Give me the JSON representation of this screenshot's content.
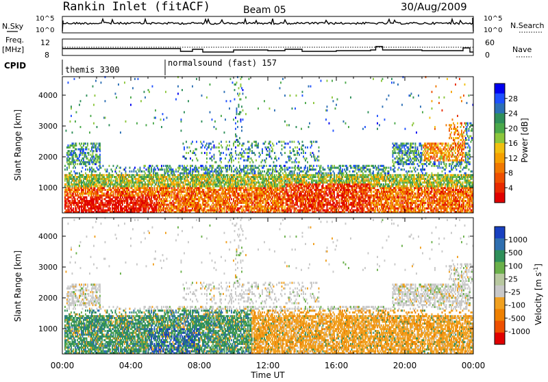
{
  "header": {
    "station": "Rankin Inlet (fitACF)",
    "beam": "Beam 05",
    "date": "30/Aug/2009"
  },
  "nsky_panel": {
    "label": "N.Sky",
    "right_label": "N.Search",
    "ticks": [
      "10^5",
      "10^0"
    ],
    "right_ticks": [
      "10^5",
      "10^0"
    ]
  },
  "freq_panel": {
    "label_line1": "Freq.",
    "label_line2": "[MHz]",
    "ticks": [
      "12",
      "8"
    ],
    "right_label": "Nave",
    "right_ticks": [
      "60",
      "0"
    ]
  },
  "cpid": {
    "label": "CPID",
    "programs": [
      {
        "name": "themis 3300",
        "start_hour": 0
      },
      {
        "name": "normalsound (fast) 157",
        "start_hour": 6
      }
    ]
  },
  "chart_data": [
    {
      "type": "heatmap",
      "name": "power",
      "ylabel": "Slant Range [km]",
      "xlabel": "",
      "x_range_hours": [
        0,
        24
      ],
      "ylim": [
        180,
        4600
      ],
      "ytick_labels": [
        "1000",
        "2000",
        "3000",
        "4000"
      ],
      "ytick_values": [
        1000,
        2000,
        3000,
        4000
      ],
      "colorbar": {
        "label": "Power [dB]",
        "ticks": [
          "4",
          "8",
          "12",
          "16",
          "20",
          "24",
          "28"
        ],
        "colors": [
          "#0000f0",
          "#1e50ff",
          "#2c6fb5",
          "#2f8f5a",
          "#4aa84a",
          "#8cc63c",
          "#f0c010",
          "#f5a000",
          "#f07800",
          "#ee5000",
          "#e82a00",
          "#e00000"
        ]
      }
    },
    {
      "type": "heatmap",
      "name": "velocity",
      "ylabel": "Slant Range [km]",
      "xlabel": "Time UT",
      "x_range_hours": [
        0,
        24
      ],
      "ylim": [
        180,
        4600
      ],
      "ytick_labels": [
        "1000",
        "2000",
        "3000",
        "4000"
      ],
      "ytick_values": [
        1000,
        2000,
        3000,
        4000
      ],
      "xtick_labels": [
        "00:00",
        "04:00",
        "08:00",
        "12:00",
        "16:00",
        "20:00",
        "00:00"
      ],
      "colorbar": {
        "label_main": "Velocity [m s",
        "label_sup": "-1",
        "label_end": "]",
        "ticks": [
          "1000",
          "500",
          "100",
          "25",
          "-25",
          "-100",
          "-500",
          "-1000"
        ],
        "colors": [
          "#1840c0",
          "#2f6fb0",
          "#2f8f5a",
          "#6ab04a",
          "#b8c8a0",
          "#c8c8c8",
          "#f0a020",
          "#ee8000",
          "#ee5000",
          "#e00000"
        ]
      }
    }
  ]
}
